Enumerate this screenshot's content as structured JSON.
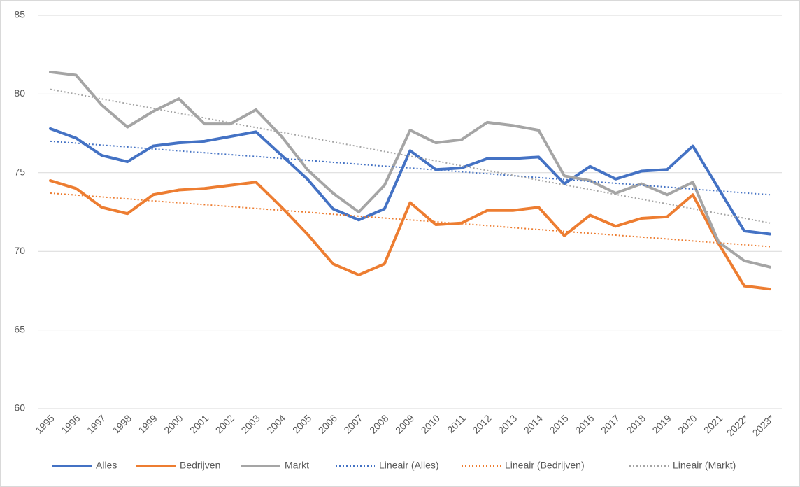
{
  "chart_data": {
    "type": "line",
    "categories": [
      "1995",
      "1996",
      "1997",
      "1998",
      "1999",
      "2000",
      "2001",
      "2002",
      "2003",
      "2004",
      "2005",
      "2006",
      "2007",
      "2008",
      "2009",
      "2010",
      "2011",
      "2012",
      "2013",
      "2014",
      "2015",
      "2016",
      "2017",
      "2018",
      "2019",
      "2020",
      "2021",
      "2022*",
      "2023*"
    ],
    "series": [
      {
        "name": "Alles",
        "color": "#4472c4",
        "dashed": false,
        "values": [
          77.8,
          77.2,
          76.1,
          75.7,
          76.7,
          76.9,
          77.0,
          77.3,
          77.6,
          76.1,
          74.6,
          72.7,
          72.0,
          72.7,
          76.4,
          75.2,
          75.3,
          75.9,
          75.9,
          76.0,
          74.3,
          75.4,
          74.6,
          75.1,
          75.2,
          76.7,
          74.0,
          71.3,
          71.1
        ]
      },
      {
        "name": "Bedrijven",
        "color": "#ed7d31",
        "dashed": false,
        "values": [
          74.5,
          74.0,
          72.8,
          72.4,
          73.6,
          73.9,
          74.0,
          74.2,
          74.4,
          72.8,
          71.1,
          69.2,
          68.5,
          69.2,
          73.1,
          71.7,
          71.8,
          72.6,
          72.6,
          72.8,
          71.0,
          72.3,
          71.6,
          72.1,
          72.2,
          73.6,
          70.5,
          67.8,
          67.6
        ]
      },
      {
        "name": "Markt",
        "color": "#a5a5a5",
        "dashed": false,
        "values": [
          81.4,
          81.2,
          79.3,
          77.9,
          78.9,
          79.7,
          78.1,
          78.1,
          79.0,
          77.3,
          75.2,
          73.7,
          72.5,
          74.2,
          77.7,
          76.9,
          77.1,
          78.2,
          78.0,
          77.7,
          74.8,
          74.5,
          73.7,
          74.3,
          73.6,
          74.4,
          70.6,
          69.4,
          69.0
        ]
      },
      {
        "name": "Lineair (Alles)",
        "color": "#4472c4",
        "dashed": true,
        "values": [
          77.0,
          76.88,
          76.76,
          76.64,
          76.51,
          76.39,
          76.27,
          76.15,
          76.03,
          75.91,
          75.79,
          75.66,
          75.54,
          75.42,
          75.3,
          75.18,
          75.06,
          74.94,
          74.81,
          74.69,
          74.57,
          74.45,
          74.33,
          74.21,
          74.09,
          73.96,
          73.84,
          73.72,
          73.6
        ]
      },
      {
        "name": "Lineair (Bedrijven)",
        "color": "#ed7d31",
        "dashed": true,
        "values": [
          73.7,
          73.58,
          73.46,
          73.34,
          73.21,
          73.09,
          72.97,
          72.85,
          72.73,
          72.61,
          72.49,
          72.36,
          72.24,
          72.12,
          72.0,
          71.88,
          71.76,
          71.64,
          71.51,
          71.39,
          71.27,
          71.15,
          71.03,
          70.91,
          70.79,
          70.66,
          70.54,
          70.42,
          70.3
        ]
      },
      {
        "name": "Lineair (Markt)",
        "color": "#a5a5a5",
        "dashed": true,
        "values": [
          80.3,
          80.0,
          79.69,
          79.39,
          79.09,
          78.78,
          78.48,
          78.17,
          77.87,
          77.57,
          77.26,
          76.96,
          76.66,
          76.35,
          76.05,
          75.75,
          75.44,
          75.14,
          74.84,
          74.53,
          74.23,
          73.93,
          73.62,
          73.32,
          73.02,
          72.71,
          72.41,
          72.11,
          71.8
        ]
      }
    ],
    "ylim": [
      60,
      85
    ],
    "yticks": [
      60,
      65,
      70,
      75,
      80,
      85
    ],
    "grid": true,
    "legend": "bottom"
  }
}
